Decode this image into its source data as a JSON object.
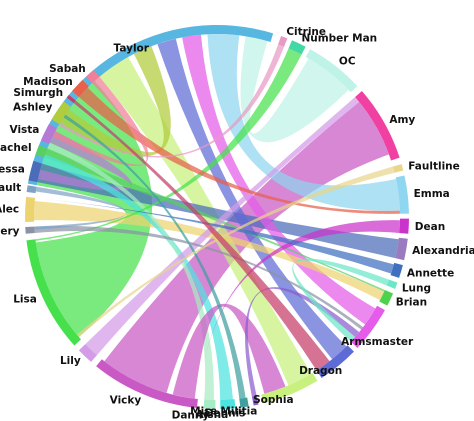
{
  "groups": [
    {
      "label": "Taylor",
      "color": "#57b7e0",
      "start": -80,
      "end": 17,
      "anchor": "start"
    },
    {
      "label": "Citrine",
      "color": "#e79ac3",
      "start": 19.5,
      "end": 21.5,
      "anchor": "start"
    },
    {
      "label": "Number Man",
      "color": "#44d9a4",
      "start": 23,
      "end": 27.5,
      "anchor": "start"
    },
    {
      "label": "OC",
      "color": "#bff3e8",
      "start": 29,
      "end": 47,
      "anchor": "start"
    },
    {
      "label": "Amy",
      "color": "#f040a2",
      "start": 49,
      "end": 72,
      "anchor": "start"
    },
    {
      "label": "Faultline",
      "color": "#e8d68c",
      "start": 74,
      "end": 76,
      "anchor": "start"
    },
    {
      "label": "Emma",
      "color": "#8fd6f0",
      "start": 77.5,
      "end": 89,
      "anchor": "start"
    },
    {
      "label": "Dean",
      "color": "#cc33cc",
      "start": 90.5,
      "end": 95,
      "anchor": "start"
    },
    {
      "label": "Alexandria",
      "color": "#9a7bbf",
      "start": 96.5,
      "end": 103,
      "anchor": "start"
    },
    {
      "label": "Annette",
      "color": "#3f6fbf",
      "start": 104.5,
      "end": 108.5,
      "anchor": "start"
    },
    {
      "label": "Lung",
      "color": "#6be6c8",
      "start": 110,
      "end": 112,
      "anchor": "start"
    },
    {
      "label": "Brian",
      "color": "#4cd24c",
      "start": 113.5,
      "end": 117.5,
      "anchor": "start"
    },
    {
      "label": "Armsmaster",
      "color": "#e45ce9",
      "start": 119,
      "end": 133,
      "anchor": "middle"
    },
    {
      "label": "Dragon",
      "color": "#5d6bd6",
      "start": 134.5,
      "end": 147,
      "anchor": "end"
    },
    {
      "label": "Sophia",
      "color": "#c8f07c",
      "start": 148.5,
      "end": 166,
      "anchor": "end"
    },
    {
      "label": "Miss Militia",
      "color": "#8a5cd0",
      "start": 167.5,
      "end": 169,
      "anchor": "end"
    },
    {
      "label": "Dennis",
      "color": "#3fa0a0",
      "start": 170.5,
      "end": 173,
      "anchor": "end"
    },
    {
      "label": "Aisha",
      "color": "#4de3e0",
      "start": 174.5,
      "end": 179,
      "anchor": "end"
    },
    {
      "label": "Danny",
      "color": "#a7ecc4",
      "start": 180.5,
      "end": 184,
      "anchor": "end"
    },
    {
      "label": "Vicky",
      "color": "#c959c4",
      "start": 186,
      "end": 219,
      "anchor": "end"
    },
    {
      "label": "Lily",
      "color": "#d39be8",
      "start": 221,
      "end": 226,
      "anchor": "end"
    },
    {
      "label": "Lisa",
      "color": "#46e04c",
      "start": 228,
      "end": 263,
      "anchor": "end"
    },
    {
      "label": "Battery",
      "color": "#8a93a3",
      "start": 265,
      "end": 267,
      "anchor": "end"
    },
    {
      "label": "Alec",
      "color": "#edd270",
      "start": 268.5,
      "end": 276,
      "anchor": "end"
    },
    {
      "label": "Assault",
      "color": "#7fa3c7",
      "start": 277.5,
      "end": 279.5,
      "anchor": "end"
    },
    {
      "label": "Contessa",
      "color": "#4b6cb8",
      "start": 281,
      "end": 287,
      "anchor": "end"
    },
    {
      "label": "Rachel",
      "color": "#57cf63",
      "start": 289,
      "end": 292,
      "anchor": "end"
    },
    {
      "label": "Vista",
      "color": "#b67ad6",
      "start": 293.5,
      "end": 299,
      "anchor": "end"
    },
    {
      "label": "Ashley",
      "color": "#b1cc3c",
      "start": 300.5,
      "end": 307,
      "anchor": "end"
    },
    {
      "label": "Simurgh",
      "color": "#c63d6a",
      "start": 308.5,
      "end": 309.5,
      "anchor": "end"
    },
    {
      "label": "Madison",
      "color": "#e8604a",
      "start": 311,
      "end": 315.5,
      "anchor": "end"
    },
    {
      "label": "Sabah",
      "color": "#f07f99",
      "start": 317,
      "end": 320,
      "anchor": "end"
    }
  ],
  "ribbons": [
    {
      "from": "Lisa",
      "to": "Taylor",
      "color": "#46e04c",
      "s": [
        229,
        262
      ],
      "t": [
        -80,
        -42
      ]
    },
    {
      "from": "Vicky",
      "to": "Amy",
      "color": "#c959c4",
      "s": [
        196,
        218
      ],
      "t": [
        51,
        70
      ]
    },
    {
      "from": "Sophia",
      "to": "Taylor",
      "color": "#c8f07c",
      "s": [
        149,
        157
      ],
      "t": [
        -40,
        -29
      ]
    },
    {
      "from": "Ashley",
      "to": "Taylor",
      "color": "#b1cc3c",
      "s": [
        301,
        306
      ],
      "t": [
        -27,
        -21
      ]
    },
    {
      "from": "Contessa",
      "to": "Alexandria",
      "color": "#4b6cb8",
      "s": [
        281,
        287
      ],
      "t": [
        97,
        103
      ]
    },
    {
      "from": "Dragon",
      "to": "Taylor",
      "color": "#5d6bd6",
      "s": [
        135,
        141
      ],
      "t": [
        -19,
        -13
      ]
    },
    {
      "from": "Armsmaster",
      "to": "Taylor",
      "color": "#e45ce9",
      "s": [
        120,
        126
      ],
      "t": [
        -11,
        -5
      ]
    },
    {
      "from": "Alec",
      "to": "Brian",
      "color": "#edd270",
      "s": [
        269,
        275
      ],
      "t": [
        114,
        117
      ]
    },
    {
      "from": "Emma",
      "to": "Taylor",
      "color": "#8fd6f0",
      "s": [
        78,
        88
      ],
      "t": [
        -3,
        7
      ]
    },
    {
      "from": "OC",
      "to": "Taylor",
      "color": "#bff3e8",
      "s": [
        30,
        46
      ],
      "t": [
        9,
        16
      ]
    },
    {
      "from": "Vista",
      "to": "Taylor",
      "color": "#b67ad6",
      "s": [
        294,
        298
      ],
      "t": [
        -78,
        -75
      ]
    },
    {
      "from": "Rachel",
      "to": "Brian",
      "color": "#57cf63",
      "s": [
        289,
        292
      ],
      "t": [
        113.5,
        114
      ]
    },
    {
      "from": "Aisha",
      "to": "Taylor",
      "color": "#4de3e0",
      "s": [
        175,
        179
      ],
      "t": [
        -73,
        -70
      ]
    },
    {
      "from": "Danny",
      "to": "Taylor",
      "color": "#a7ecc4",
      "s": [
        181,
        184
      ],
      "t": [
        -68,
        -66
      ]
    },
    {
      "from": "Lily",
      "to": "Amy",
      "color": "#d39be8",
      "s": [
        221,
        226
      ],
      "t": [
        49,
        51
      ]
    },
    {
      "from": "Vicky",
      "to": "Sophia",
      "color": "#c959c4",
      "s": [
        187,
        194
      ],
      "t": [
        158,
        165
      ]
    },
    {
      "from": "Lisa",
      "to": "Number Man",
      "color": "#46e04c",
      "s": [
        262.5,
        263
      ],
      "t": [
        23,
        27.5
      ]
    },
    {
      "from": "Madison",
      "to": "Emma",
      "color": "#e8604a",
      "s": [
        311,
        315
      ],
      "t": [
        88,
        89
      ]
    },
    {
      "from": "Sabah",
      "to": "Taylor",
      "color": "#f07f99",
      "s": [
        317,
        320
      ],
      "t": [
        -64,
        -62
      ]
    },
    {
      "from": "Dean",
      "to": "Vicky",
      "color": "#cc33cc",
      "s": [
        91,
        95
      ],
      "t": [
        186,
        186
      ]
    },
    {
      "from": "Annette",
      "to": "Alec",
      "color": "#3f6fbf",
      "s": [
        105,
        108
      ],
      "t": [
        276,
        276
      ]
    },
    {
      "from": "Citrine",
      "to": "Taylor",
      "color": "#e79ac3",
      "s": [
        19.5,
        21.5
      ],
      "t": [
        -60,
        -59
      ]
    },
    {
      "from": "Dennis",
      "to": "Taylor",
      "color": "#3fa0a0",
      "s": [
        171,
        173
      ],
      "t": [
        -57,
        -56
      ]
    },
    {
      "from": "Battery",
      "to": "Armsmaster",
      "color": "#8a93a3",
      "s": [
        265,
        267
      ],
      "t": [
        127,
        128
      ]
    },
    {
      "from": "Assault",
      "to": "Battery",
      "color": "#7fa3c7",
      "s": [
        278,
        279.5
      ],
      "t": [
        266,
        267
      ]
    },
    {
      "from": "Miss Militia",
      "to": "Armsmaster",
      "color": "#8a5cd0",
      "s": [
        167.5,
        169
      ],
      "t": [
        129,
        131
      ]
    },
    {
      "from": "Faultline",
      "to": "Lisa",
      "color": "#e8d68c",
      "s": [
        74,
        76
      ],
      "t": [
        229,
        230
      ]
    },
    {
      "from": "Lung",
      "to": "Armsmaster",
      "color": "#6be6c8",
      "s": [
        110,
        112
      ],
      "t": [
        131,
        133
      ]
    },
    {
      "from": "Simurgh",
      "to": "Dragon",
      "color": "#c63d6a",
      "s": [
        308.5,
        309.5
      ],
      "t": [
        142,
        147
      ]
    }
  ]
}
